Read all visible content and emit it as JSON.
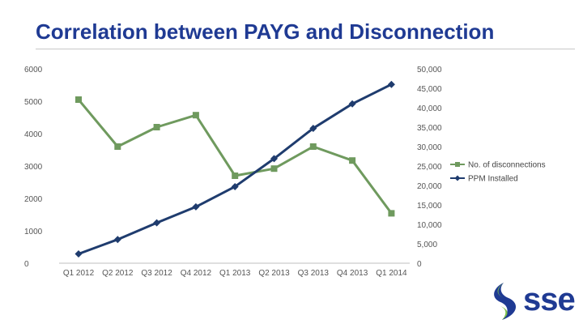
{
  "title": "Correlation between PAYG and Disconnection",
  "colors": {
    "title": "#1f3a93",
    "disconnections": "#6f9a5e",
    "ppm": "#1f3c6e",
    "logo_blue": "#1f3a93",
    "logo_green": "#7cc04b"
  },
  "chart_data": {
    "type": "line",
    "title": "",
    "categories": [
      "Q1 2012",
      "Q2 2012",
      "Q3 2012",
      "Q4 2012",
      "Q1 2013",
      "Q2 2013",
      "Q3 2013",
      "Q4 2013",
      "Q1 2014"
    ],
    "y_left": {
      "min": 0,
      "max": 6000,
      "step": 1000,
      "ticks": [
        "0",
        "1000",
        "2000",
        "3000",
        "4000",
        "5000",
        "6000"
      ]
    },
    "y_right": {
      "min": 0,
      "max": 50000,
      "step": 5000,
      "ticks": [
        "0",
        "5,000",
        "10,000",
        "15,000",
        "20,000",
        "25,000",
        "30,000",
        "35,000",
        "40,000",
        "45,000",
        "50,000"
      ]
    },
    "series": [
      {
        "name": "No. of disconnections",
        "axis": "left",
        "marker": "square",
        "color": "#6f9a5e",
        "values": [
          5050,
          3600,
          4200,
          4570,
          2700,
          2920,
          3600,
          3170,
          1540
        ]
      },
      {
        "name": "PPM Installed",
        "axis": "right",
        "marker": "diamond",
        "color": "#1f3c6e",
        "values": [
          2400,
          6100,
          10400,
          14500,
          19700,
          26900,
          34700,
          41000,
          46000
        ]
      }
    ],
    "grid": false,
    "legend": "right"
  },
  "logo": {
    "text": "sse",
    "icon": "sse-swirl-icon"
  }
}
